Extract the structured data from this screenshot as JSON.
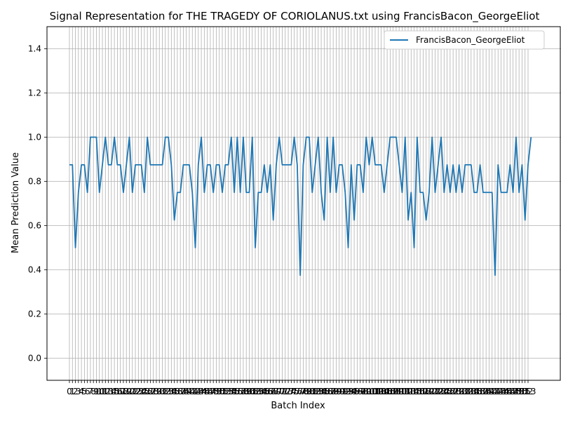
{
  "chart_data": {
    "type": "line",
    "title": "Signal Representation for THE TRAGEDY OF CORIOLANUS.txt using FrancisBacon_GeorgeEliot",
    "xlabel": "Batch Index",
    "ylabel": "Mean Prediction Value",
    "xlim": [
      0,
      153
    ],
    "ylim": [
      -0.1,
      1.5
    ],
    "yticks": [
      0.0,
      0.2,
      0.4,
      0.6,
      0.8,
      1.0,
      1.2,
      1.4
    ],
    "ytick_labels": [
      "0.0",
      "0.2",
      "0.4",
      "0.6",
      "0.8",
      "1.0",
      "1.2",
      "1.4"
    ],
    "grid": true,
    "legend_position": "top-right",
    "series": [
      {
        "name": "FrancisBacon_GeorgeEliot",
        "color": "#1f77b4",
        "values": [
          0.875,
          0.875,
          0.5,
          0.75,
          0.875,
          0.875,
          0.75,
          1.0,
          1.0,
          1.0,
          0.75,
          0.875,
          1.0,
          0.875,
          0.875,
          1.0,
          0.875,
          0.875,
          0.75,
          0.875,
          1.0,
          0.75,
          0.875,
          0.875,
          0.875,
          0.75,
          1.0,
          0.875,
          0.875,
          0.875,
          0.875,
          0.875,
          1.0,
          1.0,
          0.875,
          0.625,
          0.75,
          0.75,
          0.875,
          0.875,
          0.875,
          0.75,
          0.5,
          0.875,
          1.0,
          0.75,
          0.875,
          0.875,
          0.75,
          0.875,
          0.875,
          0.75,
          0.875,
          0.875,
          1.0,
          0.75,
          1.0,
          0.75,
          1.0,
          0.75,
          0.75,
          1.0,
          0.5,
          0.75,
          0.75,
          0.875,
          0.75,
          0.875,
          0.625,
          0.875,
          1.0,
          0.875,
          0.875,
          0.875,
          0.875,
          1.0,
          0.875,
          0.375,
          0.875,
          1.0,
          1.0,
          0.75,
          0.875,
          1.0,
          0.75,
          0.625,
          1.0,
          0.75,
          1.0,
          0.75,
          0.875,
          0.875,
          0.75,
          0.5,
          0.875,
          0.625,
          0.875,
          0.875,
          0.75,
          1.0,
          0.875,
          1.0,
          0.875,
          0.875,
          0.875,
          0.75,
          0.875,
          1.0,
          1.0,
          1.0,
          0.875,
          0.75,
          1.0,
          0.625,
          0.75,
          0.5,
          1.0,
          0.75,
          0.75,
          0.625,
          0.75,
          1.0,
          0.75,
          0.875,
          1.0,
          0.75,
          0.875,
          0.75,
          0.875,
          0.75,
          0.875,
          0.75,
          0.875,
          0.875,
          0.875,
          0.75,
          0.75,
          0.875,
          0.75,
          0.75,
          0.75,
          0.75,
          0.375,
          0.875,
          0.75,
          0.75,
          0.75,
          0.875,
          0.75,
          1.0,
          0.75,
          0.875,
          0.625,
          0.875,
          1.0
        ]
      }
    ]
  }
}
